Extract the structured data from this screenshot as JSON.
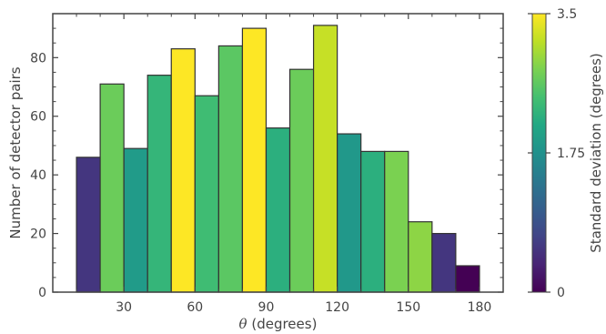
{
  "chart_data": {
    "type": "bar",
    "title": "",
    "xlabel": "θ (degrees)",
    "xlabel_symbol": "θ",
    "xlabel_rest": " (degrees)",
    "ylabel": "Number of detector pairs",
    "xlim": [
      0,
      190
    ],
    "ylim": [
      0,
      95
    ],
    "xticks": [
      30,
      60,
      90,
      120,
      150,
      180
    ],
    "yticks": [
      0,
      20,
      40,
      60,
      80
    ],
    "bin_width": 10,
    "bars": [
      {
        "x_start": 10,
        "x_end": 20,
        "value": 46,
        "std_dev": 0.55
      },
      {
        "x_start": 20,
        "x_end": 30,
        "value": 71,
        "std_dev": 2.7
      },
      {
        "x_start": 30,
        "x_end": 40,
        "value": 49,
        "std_dev": 1.9
      },
      {
        "x_start": 40,
        "x_end": 50,
        "value": 74,
        "std_dev": 2.3
      },
      {
        "x_start": 50,
        "x_end": 60,
        "value": 83,
        "std_dev": 3.5
      },
      {
        "x_start": 60,
        "x_end": 70,
        "value": 67,
        "std_dev": 2.4
      },
      {
        "x_start": 70,
        "x_end": 80,
        "value": 84,
        "std_dev": 2.6
      },
      {
        "x_start": 80,
        "x_end": 90,
        "value": 90,
        "std_dev": 3.5
      },
      {
        "x_start": 90,
        "x_end": 100,
        "value": 56,
        "std_dev": 2.2
      },
      {
        "x_start": 100,
        "x_end": 110,
        "value": 76,
        "std_dev": 2.7
      },
      {
        "x_start": 110,
        "x_end": 120,
        "value": 91,
        "std_dev": 3.2
      },
      {
        "x_start": 120,
        "x_end": 130,
        "value": 54,
        "std_dev": 1.85
      },
      {
        "x_start": 130,
        "x_end": 140,
        "value": 48,
        "std_dev": 2.2
      },
      {
        "x_start": 140,
        "x_end": 150,
        "value": 48,
        "std_dev": 2.8
      },
      {
        "x_start": 150,
        "x_end": 160,
        "value": 24,
        "std_dev": 2.9
      },
      {
        "x_start": 160,
        "x_end": 170,
        "value": 20,
        "std_dev": 0.55
      },
      {
        "x_start": 170,
        "x_end": 180,
        "value": 9,
        "std_dev": 0.0
      }
    ],
    "colorbar": {
      "label": "Standard deviation (degrees)",
      "colormap": "viridis",
      "range": [
        0,
        3.5
      ],
      "ticks": [
        0,
        1.75,
        3.5
      ],
      "tick_labels": [
        "0",
        "1.75",
        "3.5"
      ]
    },
    "bar_edge_color": "#333333",
    "axis_color": "#444444",
    "grid": false,
    "legend": "none"
  }
}
